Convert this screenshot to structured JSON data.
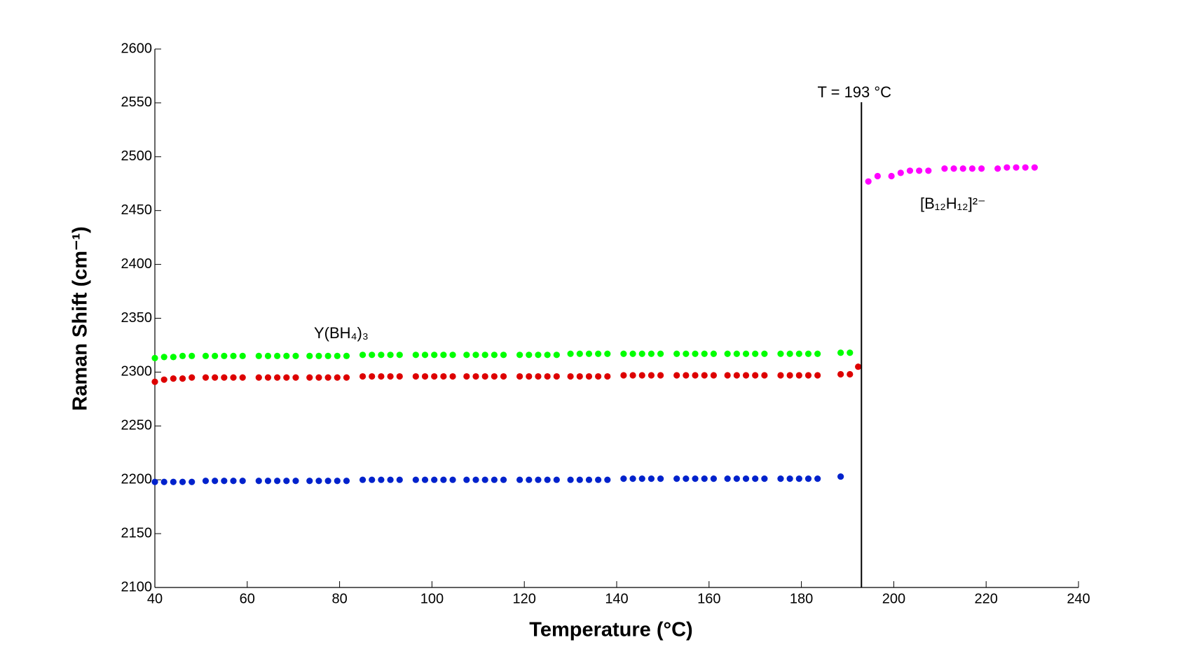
{
  "chart_data": {
    "type": "scatter",
    "xlabel": "Temperature (°C)",
    "ylabel": "Raman Shift (cm⁻¹)",
    "xlim": [
      40,
      240
    ],
    "xticks": [
      40,
      60,
      80,
      100,
      120,
      140,
      160,
      180,
      200,
      220,
      240
    ],
    "ylim": [
      2100,
      2600
    ],
    "yticks": [
      2100,
      2150,
      2200,
      2250,
      2300,
      2350,
      2400,
      2450,
      2500,
      2550,
      2600
    ],
    "grid": false,
    "vline": {
      "x": 193,
      "label": "T = 193 °C",
      "color": "#000000"
    },
    "annotations": [
      "Y(BH₄)₃",
      "[B₁₂H₁₂]²⁻"
    ],
    "series": [
      {
        "color": "#00ff00",
        "x": [
          40,
          42,
          44,
          46,
          48,
          51,
          53,
          55,
          57,
          59,
          62.5,
          64.5,
          66.5,
          68.5,
          70.5,
          73.5,
          75.5,
          77.5,
          79.5,
          81.5,
          85,
          87,
          89,
          91,
          93,
          96.5,
          98.5,
          100.5,
          102.5,
          104.5,
          107.5,
          109.5,
          111.5,
          113.5,
          115.5,
          119,
          121,
          123,
          125,
          127,
          130,
          132,
          134,
          136,
          138,
          141.5,
          143.5,
          145.5,
          147.5,
          149.5,
          153,
          155,
          157,
          159,
          161,
          164,
          166,
          168,
          170,
          172,
          175.5,
          177.5,
          179.5,
          181.5,
          183.5,
          188.5,
          190.5
        ],
        "values": [
          2313,
          2314,
          2314,
          2315,
          2315,
          2315,
          2315,
          2315,
          2315,
          2315,
          2315,
          2315,
          2315,
          2315,
          2315,
          2315,
          2315,
          2315,
          2315,
          2315,
          2316,
          2316,
          2316,
          2316,
          2316,
          2316,
          2316,
          2316,
          2316,
          2316,
          2316,
          2316,
          2316,
          2316,
          2316,
          2316,
          2316,
          2316,
          2316,
          2316,
          2317,
          2317,
          2317,
          2317,
          2317,
          2317,
          2317,
          2317,
          2317,
          2317,
          2317,
          2317,
          2317,
          2317,
          2317,
          2317,
          2317,
          2317,
          2317,
          2317,
          2317,
          2317,
          2317,
          2317,
          2317,
          2318,
          2318
        ]
      },
      {
        "color": "#dd0000",
        "x": [
          40,
          42,
          44,
          46,
          48,
          51,
          53,
          55,
          57,
          59,
          62.5,
          64.5,
          66.5,
          68.5,
          70.5,
          73.5,
          75.5,
          77.5,
          79.5,
          81.5,
          85,
          87,
          89,
          91,
          93,
          96.5,
          98.5,
          100.5,
          102.5,
          104.5,
          107.5,
          109.5,
          111.5,
          113.5,
          115.5,
          119,
          121,
          123,
          125,
          127,
          130,
          132,
          134,
          136,
          138,
          141.5,
          143.5,
          145.5,
          147.5,
          149.5,
          153,
          155,
          157,
          159,
          161,
          164,
          166,
          168,
          170,
          172,
          175.5,
          177.5,
          179.5,
          181.5,
          183.5,
          188.5,
          190.5,
          192.3
        ],
        "values": [
          2291,
          2293,
          2294,
          2294,
          2295,
          2295,
          2295,
          2295,
          2295,
          2295,
          2295,
          2295,
          2295,
          2295,
          2295,
          2295,
          2295,
          2295,
          2295,
          2295,
          2296,
          2296,
          2296,
          2296,
          2296,
          2296,
          2296,
          2296,
          2296,
          2296,
          2296,
          2296,
          2296,
          2296,
          2296,
          2296,
          2296,
          2296,
          2296,
          2296,
          2296,
          2296,
          2296,
          2296,
          2296,
          2297,
          2297,
          2297,
          2297,
          2297,
          2297,
          2297,
          2297,
          2297,
          2297,
          2297,
          2297,
          2297,
          2297,
          2297,
          2297,
          2297,
          2297,
          2297,
          2297,
          2298,
          2298,
          2305
        ]
      },
      {
        "color": "#0022cc",
        "x": [
          40,
          42,
          44,
          46,
          48,
          51,
          53,
          55,
          57,
          59,
          62.5,
          64.5,
          66.5,
          68.5,
          70.5,
          73.5,
          75.5,
          77.5,
          79.5,
          81.5,
          85,
          87,
          89,
          91,
          93,
          96.5,
          98.5,
          100.5,
          102.5,
          104.5,
          107.5,
          109.5,
          111.5,
          113.5,
          115.5,
          119,
          121,
          123,
          125,
          127,
          130,
          132,
          134,
          136,
          138,
          141.5,
          143.5,
          145.5,
          147.5,
          149.5,
          153,
          155,
          157,
          159,
          161,
          164,
          166,
          168,
          170,
          172,
          175.5,
          177.5,
          179.5,
          181.5,
          183.5,
          188.5
        ],
        "values": [
          2198,
          2198,
          2198,
          2198,
          2198,
          2199,
          2199,
          2199,
          2199,
          2199,
          2199,
          2199,
          2199,
          2199,
          2199,
          2199,
          2199,
          2199,
          2199,
          2199,
          2200,
          2200,
          2200,
          2200,
          2200,
          2200,
          2200,
          2200,
          2200,
          2200,
          2200,
          2200,
          2200,
          2200,
          2200,
          2200,
          2200,
          2200,
          2200,
          2200,
          2200,
          2200,
          2200,
          2200,
          2200,
          2201,
          2201,
          2201,
          2201,
          2201,
          2201,
          2201,
          2201,
          2201,
          2201,
          2201,
          2201,
          2201,
          2201,
          2201,
          2201,
          2201,
          2201,
          2201,
          2201,
          2203
        ]
      },
      {
        "color": "#ff00ff",
        "x": [
          194.5,
          196.5,
          199.5,
          201.5,
          203.5,
          205.5,
          207.5,
          211,
          213,
          215,
          217,
          219,
          222.5,
          224.5,
          226.5,
          228.5,
          230.5
        ],
        "values": [
          2477,
          2482,
          2482,
          2485,
          2487,
          2487,
          2487,
          2489,
          2489,
          2489,
          2489,
          2489,
          2489,
          2490,
          2490,
          2490,
          2490
        ]
      }
    ]
  }
}
